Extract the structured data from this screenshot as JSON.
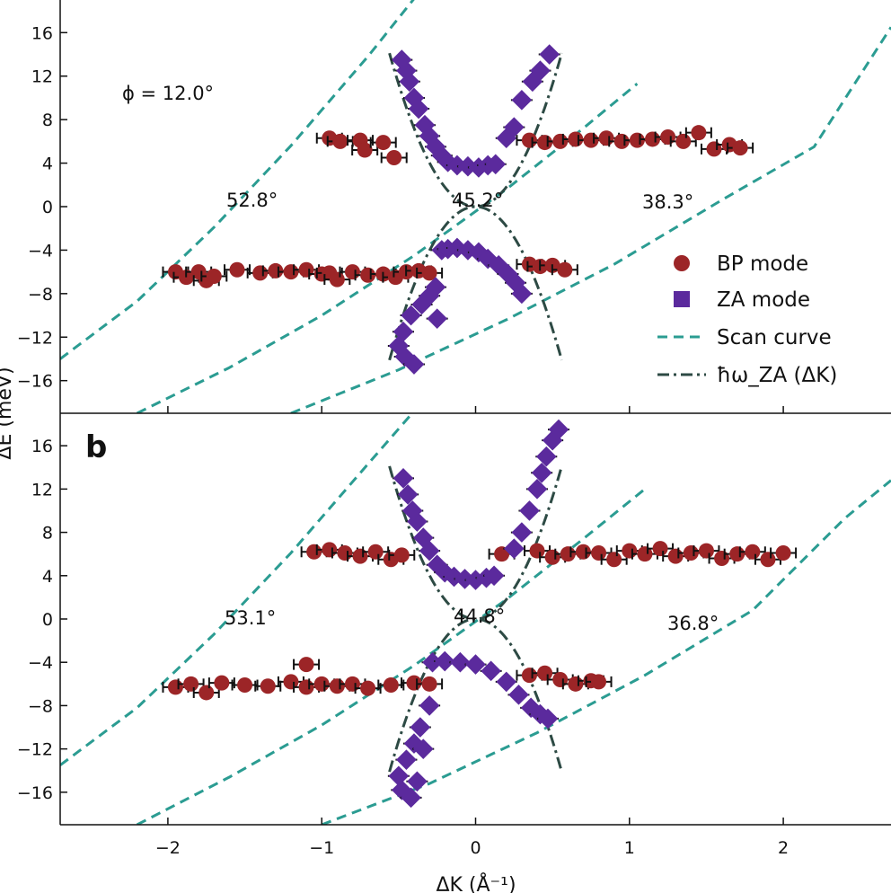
{
  "chart_data": [
    {
      "panel": "a",
      "panel_label": "",
      "type": "scatter",
      "annotation": "ϕ = 12.0°",
      "xlim": [
        -2.7,
        2.7
      ],
      "ylim": [
        -19,
        19
      ],
      "xticks": [
        -2,
        -1,
        0,
        1,
        2
      ],
      "yticks": [
        -16,
        -12,
        -8,
        -4,
        0,
        4,
        8,
        12,
        16
      ],
      "ytick_labels": [
        "−16",
        "−12",
        "−8",
        "−4",
        "0",
        "4",
        "8",
        "12",
        "16"
      ],
      "ylabel": "ΔE (meV)",
      "scan_curves": [
        {
          "label": "52.8°",
          "x": [
            -2.7,
            -2.2,
            -1.7,
            -1.2,
            -0.7,
            -0.35
          ],
          "y": [
            -14,
            -8.7,
            -1.9,
            5.6,
            13.8,
            20
          ]
        },
        {
          "label": "45.2°",
          "x": [
            -2.2,
            -1.6,
            -1.0,
            -0.4,
            0.2,
            0.7,
            1.05
          ],
          "y": [
            -19,
            -14.8,
            -10,
            -4.5,
            1.6,
            7.2,
            11.3
          ]
        },
        {
          "label": "38.3°",
          "x": [
            -1.2,
            -0.5,
            0.2,
            0.9,
            1.6,
            2.2,
            2.7
          ],
          "y": [
            -19,
            -15,
            -10.4,
            -5.3,
            0.6,
            5.5,
            16.5
          ]
        }
      ],
      "dispersion": {
        "label": "ħω_ZA (ΔK)",
        "k_coeff": 45,
        "x_range": [
          -0.56,
          0.56
        ]
      },
      "bp_mode": {
        "x": [
          -0.95,
          -0.88,
          -0.75,
          -0.72,
          -0.6,
          -0.53,
          0.35,
          0.45,
          0.55,
          0.65,
          0.75,
          0.85,
          0.95,
          1.05,
          1.15,
          1.25,
          1.35,
          1.45,
          1.55,
          1.65,
          1.72,
          -1.95,
          -1.88,
          -1.8,
          -1.75,
          -1.7,
          -1.55,
          -1.4,
          -1.3,
          -1.2,
          -1.1,
          -1.0,
          -0.95,
          -0.9,
          -0.8,
          -0.7,
          -0.6,
          -0.52,
          -0.45,
          -0.37,
          -0.3,
          0.35,
          0.42,
          0.5,
          0.58
        ],
        "y": [
          6.3,
          6.0,
          6.1,
          5.2,
          5.9,
          4.5,
          6.1,
          5.9,
          6.0,
          6.2,
          6.1,
          6.3,
          6.0,
          6.1,
          6.2,
          6.4,
          6.0,
          6.8,
          5.3,
          5.7,
          5.4,
          -6.0,
          -6.5,
          -6.0,
          -6.8,
          -6.4,
          -5.8,
          -6.1,
          -5.9,
          -6.0,
          -5.8,
          -6.2,
          -6.1,
          -6.7,
          -6.0,
          -6.3,
          -6.2,
          -6.5,
          -6.0,
          -5.9,
          -6.1,
          -5.3,
          -5.5,
          -5.4,
          -5.8
        ]
      },
      "za_mode": {
        "x": [
          -0.48,
          -0.45,
          -0.43,
          -0.4,
          -0.37,
          -0.33,
          -0.3,
          -0.26,
          -0.22,
          -0.18,
          -0.12,
          -0.05,
          0.02,
          0.08,
          0.13,
          0.2,
          0.25,
          0.3,
          0.37,
          0.42,
          0.48,
          -0.22,
          -0.18,
          -0.12,
          -0.05,
          0.02,
          0.08,
          0.15,
          0.21,
          0.26,
          0.3,
          -0.3,
          -0.26,
          -0.35,
          -0.42,
          -0.47,
          -0.5,
          -0.46,
          -0.4,
          -0.25
        ],
        "y": [
          13.5,
          12.5,
          11.5,
          10.0,
          9.0,
          7.5,
          6.5,
          5.5,
          4.7,
          4.1,
          3.8,
          3.7,
          3.6,
          3.8,
          3.9,
          6.3,
          7.3,
          9.8,
          11.5,
          12.5,
          14.0,
          -4.0,
          -3.9,
          -3.8,
          -4.0,
          -4.2,
          -4.8,
          -5.4,
          -6.2,
          -7.0,
          -8.0,
          -8.2,
          -7.4,
          -9.0,
          -10.0,
          -11.5,
          -12.8,
          -13.8,
          -14.5,
          -10.3
        ]
      },
      "legend": {
        "placement": "right",
        "entries": [
          "BP mode",
          "ZA mode",
          "Scan curve",
          "ħω_ZA (ΔK)"
        ]
      }
    },
    {
      "panel": "b",
      "panel_label": "b",
      "type": "scatter",
      "xlim": [
        -2.7,
        2.7
      ],
      "ylim": [
        -19,
        19
      ],
      "xticks": [
        -2,
        -1,
        0,
        1,
        2
      ],
      "xtick_labels": [
        "−2",
        "−1",
        "0",
        "1",
        "2"
      ],
      "yticks": [
        -16,
        -12,
        -8,
        -4,
        0,
        4,
        8,
        12,
        16
      ],
      "ytick_labels": [
        "−16",
        "−12",
        "−8",
        "−4",
        "0",
        "4",
        "8",
        "12",
        "16"
      ],
      "xlabel": "ΔK (Å⁻¹)",
      "scan_curves": [
        {
          "label": "53.1°",
          "x": [
            -2.7,
            -2.2,
            -1.7,
            -1.2,
            -0.7,
            -0.35
          ],
          "y": [
            -13.5,
            -8.2,
            -1.4,
            6.1,
            14.3,
            20
          ]
        },
        {
          "label": "44.8°",
          "x": [
            -2.2,
            -1.6,
            -1.0,
            -0.4,
            0.2,
            0.7,
            1.1
          ],
          "y": [
            -19,
            -14.6,
            -9.8,
            -4.3,
            1.8,
            7.4,
            12
          ]
        },
        {
          "label": "36.8°",
          "x": [
            -1.0,
            -0.3,
            0.4,
            1.1,
            1.8,
            2.4,
            2.7
          ],
          "y": [
            -19,
            -15.2,
            -10.5,
            -5.2,
            0.8,
            9.3,
            12.8
          ]
        }
      ],
      "dispersion": {
        "label": "ħω_ZA (ΔK)",
        "k_coeff": 45,
        "x_range": [
          -0.56,
          0.56
        ]
      },
      "bp_mode": {
        "x": [
          -1.05,
          -0.95,
          -0.85,
          -0.75,
          -0.65,
          -0.55,
          -0.48,
          0.17,
          0.4,
          0.5,
          0.6,
          0.7,
          0.8,
          0.9,
          1.0,
          1.1,
          1.2,
          1.3,
          1.4,
          1.5,
          1.6,
          1.7,
          1.8,
          1.9,
          2.0,
          -1.95,
          -1.85,
          -1.75,
          -1.65,
          -1.5,
          -1.35,
          -1.2,
          -1.1,
          -1.0,
          -0.9,
          -0.8,
          -0.7,
          -0.55,
          -0.4,
          -0.3,
          0.35,
          0.45,
          0.55,
          0.65,
          0.75,
          0.8,
          -1.1
        ],
        "y": [
          6.2,
          6.4,
          6.1,
          5.8,
          6.2,
          5.5,
          5.9,
          6.0,
          6.3,
          5.7,
          6.0,
          6.2,
          6.1,
          5.5,
          6.3,
          6.0,
          6.5,
          5.8,
          6.1,
          6.3,
          5.6,
          6.0,
          6.2,
          5.5,
          6.1,
          -6.3,
          -6.0,
          -6.8,
          -5.9,
          -6.1,
          -6.2,
          -5.8,
          -6.3,
          -6.0,
          -6.2,
          -6.0,
          -6.4,
          -6.1,
          -5.9,
          -6.0,
          -5.2,
          -5.0,
          -5.6,
          -6.0,
          -5.7,
          -5.8,
          -4.2
        ]
      },
      "za_mode": {
        "x": [
          -0.47,
          -0.44,
          -0.41,
          -0.38,
          -0.34,
          -0.3,
          -0.25,
          -0.2,
          -0.14,
          -0.07,
          0.0,
          0.07,
          0.12,
          0.25,
          0.3,
          0.35,
          0.4,
          0.43,
          0.46,
          0.5,
          0.54,
          -0.28,
          -0.2,
          -0.1,
          0.0,
          0.1,
          0.2,
          0.28,
          0.36,
          0.42,
          0.47,
          -0.3,
          -0.36,
          -0.4,
          -0.45,
          -0.5,
          -0.48,
          -0.42,
          -0.38,
          -0.34
        ],
        "y": [
          13.0,
          11.5,
          10.0,
          9.0,
          7.5,
          6.3,
          5.0,
          4.3,
          3.9,
          3.7,
          3.6,
          3.8,
          4.0,
          6.5,
          8.0,
          10.0,
          12.0,
          13.5,
          15.0,
          16.5,
          17.5,
          -4.0,
          -3.9,
          -4.0,
          -4.2,
          -4.8,
          -5.8,
          -7.0,
          -8.2,
          -8.8,
          -9.2,
          -8.0,
          -10.0,
          -11.5,
          -13.0,
          -14.5,
          -15.8,
          -16.5,
          -15.0,
          -12.0
        ]
      }
    }
  ],
  "colors": {
    "bp": "#9c2527",
    "za": "#5b2a9d",
    "scan": "#2b9c92",
    "dispersion": "#2d4a44",
    "axis": "#111111"
  }
}
